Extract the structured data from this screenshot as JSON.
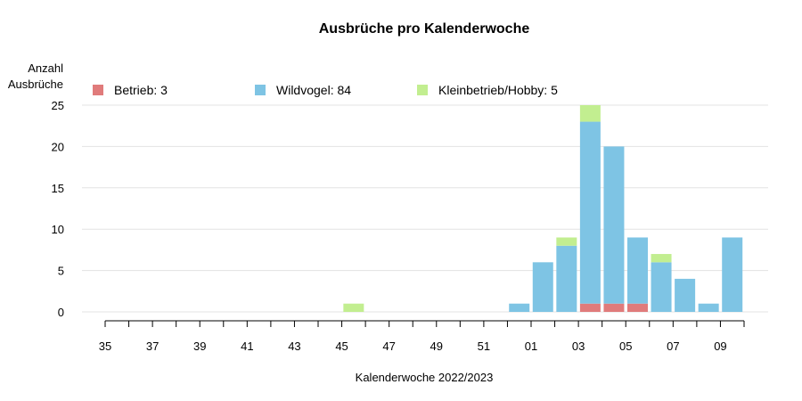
{
  "chart_data": {
    "type": "bar",
    "stacked": true,
    "title": "Ausbrüche pro Kalenderwoche",
    "ylabel_lines": [
      "Anzahl",
      "Ausbrüche"
    ],
    "xlabel": "Kalenderwoche 2022/2023",
    "ylim": [
      0,
      25
    ],
    "yticks": [
      0,
      5,
      10,
      15,
      20,
      25
    ],
    "grid": "horizontal",
    "legend_position": "top",
    "categories": [
      "35",
      "36",
      "37",
      "38",
      "39",
      "40",
      "41",
      "42",
      "43",
      "44",
      "45",
      "46",
      "47",
      "48",
      "49",
      "50",
      "51",
      "52",
      "01",
      "02",
      "03",
      "04",
      "05",
      "06",
      "07",
      "08",
      "09"
    ],
    "xtick_labels": [
      "35",
      "37",
      "39",
      "41",
      "43",
      "45",
      "47",
      "49",
      "51",
      "01",
      "03",
      "05",
      "07",
      "09"
    ],
    "series": [
      {
        "name": "Betrieb: 3",
        "color": "#E07B7B",
        "values": [
          0,
          0,
          0,
          0,
          0,
          0,
          0,
          0,
          0,
          0,
          0,
          0,
          0,
          0,
          0,
          0,
          0,
          0,
          0,
          0,
          1,
          1,
          1,
          0,
          0,
          0,
          0
        ]
      },
      {
        "name": "Wildvogel: 84",
        "color": "#7EC4E4",
        "values": [
          0,
          0,
          0,
          0,
          0,
          0,
          0,
          0,
          0,
          0,
          0,
          0,
          0,
          0,
          0,
          0,
          0,
          1,
          6,
          8,
          22,
          19,
          8,
          6,
          4,
          1,
          9
        ]
      },
      {
        "name": "Kleinbetrieb/Hobby: 5",
        "color": "#C2EE90",
        "values": [
          0,
          0,
          0,
          0,
          0,
          0,
          0,
          0,
          0,
          0,
          1,
          0,
          0,
          0,
          0,
          0,
          0,
          0,
          0,
          1,
          2,
          0,
          0,
          1,
          0,
          0,
          0
        ]
      }
    ]
  }
}
